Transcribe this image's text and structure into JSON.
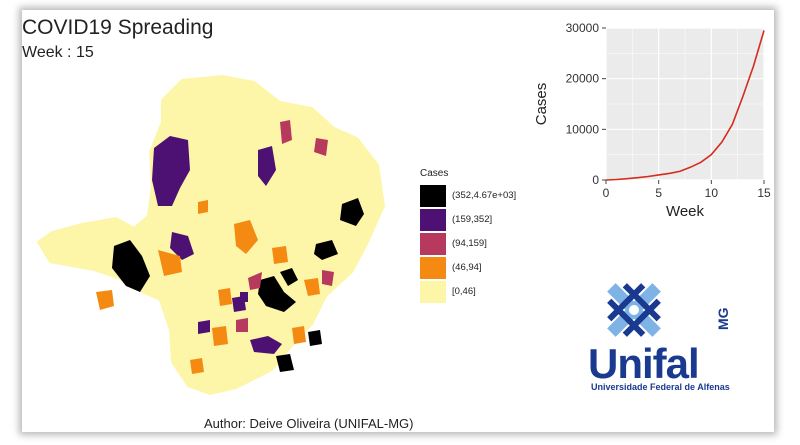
{
  "header": {
    "title": "COVID19 Spreading",
    "week_label": "Week : 15"
  },
  "footer": {
    "author": "Author: Deive Oliveira (UNIFAL-MG)"
  },
  "legend": {
    "title": "Cases",
    "items": [
      {
        "label": "(352,4.67e+03]",
        "color": "#000000"
      },
      {
        "label": "(159,352]",
        "color": "#4d1173"
      },
      {
        "label": "(94,159]",
        "color": "#b8395e"
      },
      {
        "label": "(46,94]",
        "color": "#f48a12"
      },
      {
        "label": "[0,46]",
        "color": "#fdf6a8"
      }
    ]
  },
  "logo": {
    "name": "Unifal",
    "suffix": "MG",
    "subtitle": "Universidade Federal de Alfenas"
  },
  "chart_data": {
    "type": "line",
    "xlabel": "Week",
    "ylabel": "Cases",
    "xlim": [
      0,
      15
    ],
    "ylim": [
      0,
      30000
    ],
    "xticks": [
      0,
      5,
      10,
      15
    ],
    "yticks": [
      0,
      10000,
      20000,
      30000
    ],
    "grid": true,
    "color": "#d62b1f",
    "series": [
      {
        "x": [
          0,
          1,
          2,
          3,
          4,
          5,
          6,
          7,
          8,
          9,
          10,
          11,
          12,
          13,
          14,
          15
        ],
        "values": [
          0,
          100,
          250,
          450,
          700,
          1000,
          1300,
          1700,
          2500,
          3500,
          5000,
          7500,
          11000,
          16500,
          22500,
          29500
        ]
      }
    ]
  }
}
